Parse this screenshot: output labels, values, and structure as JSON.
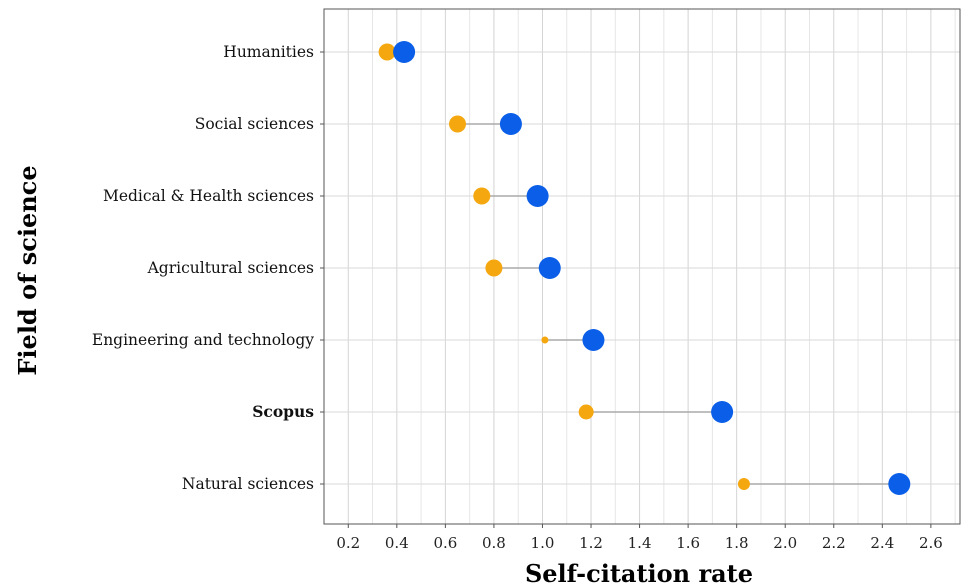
{
  "chart_data": {
    "type": "dumbbell",
    "xlabel": "Self-citation rate",
    "ylabel": "Field of science",
    "xlim": [
      0.1,
      2.72
    ],
    "x_ticks": [
      "0.2",
      "0.4",
      "0.6",
      "0.8",
      "1.0",
      "1.2",
      "1.4",
      "1.6",
      "1.8",
      "2.0",
      "2.2",
      "2.4",
      "2.6"
    ],
    "grid": true,
    "colors": {
      "low": "#F5A70F",
      "high": "#0A5EE8",
      "connector": "#AAAAAA"
    },
    "categories": [
      {
        "label": "Humanities",
        "low": 0.36,
        "high": 0.43,
        "low_size": "large",
        "bold": false
      },
      {
        "label": "Social sciences",
        "low": 0.65,
        "high": 0.87,
        "low_size": "large",
        "bold": false
      },
      {
        "label": "Medical & Health sciences",
        "low": 0.75,
        "high": 0.98,
        "low_size": "large",
        "bold": false
      },
      {
        "label": "Agricultural sciences",
        "low": 0.8,
        "high": 1.03,
        "low_size": "large",
        "bold": false
      },
      {
        "label": "Engineering and technology",
        "low": 1.01,
        "high": 1.21,
        "low_size": "tiny",
        "bold": false
      },
      {
        "label": "Scopus",
        "low": 1.18,
        "high": 1.74,
        "low_size": "medium",
        "bold": true
      },
      {
        "label": "Natural sciences",
        "low": 1.83,
        "high": 2.47,
        "low_size": "small",
        "bold": false
      }
    ]
  }
}
